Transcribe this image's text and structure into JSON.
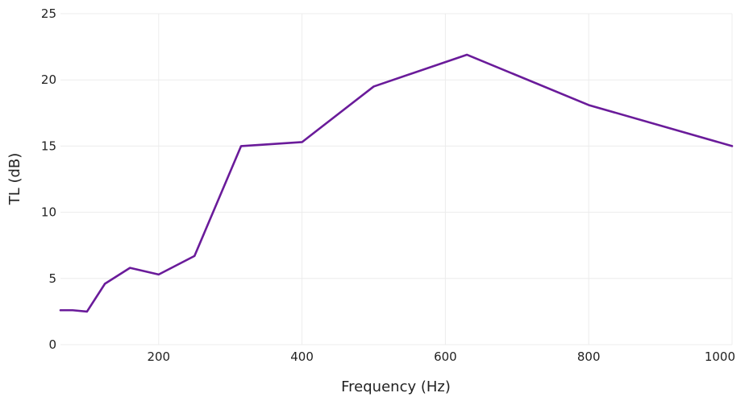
{
  "chart_data": {
    "type": "line",
    "title": "",
    "xlabel": "Frequency (Hz)",
    "ylabel": "TL (dB)",
    "xlim": [
      63,
      1000
    ],
    "ylim": [
      0,
      25
    ],
    "x_ticks": [
      200,
      400,
      600,
      800,
      1000
    ],
    "y_ticks": [
      0,
      5,
      10,
      15,
      20,
      25
    ],
    "grid": true,
    "legend": "none",
    "series": [
      {
        "color": "#6a1b9a",
        "x": [
          63,
          80,
          100,
          125,
          160,
          200,
          250,
          315,
          400,
          500,
          630,
          800,
          1000
        ],
        "y": [
          2.6,
          2.6,
          2.5,
          4.6,
          5.8,
          5.3,
          6.7,
          15.0,
          15.3,
          19.5,
          21.9,
          18.1,
          15.0
        ]
      }
    ]
  }
}
